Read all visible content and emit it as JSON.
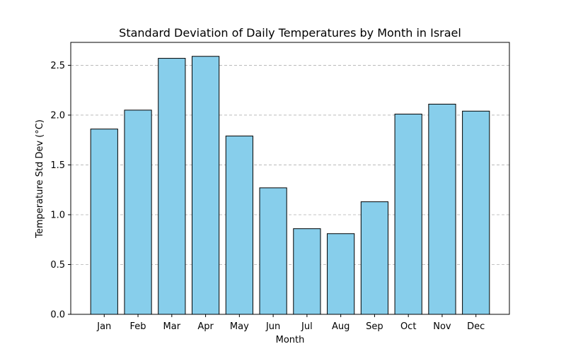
{
  "chart_data": {
    "type": "bar",
    "title": "Standard Deviation of Daily Temperatures by Month in Israel",
    "xlabel": "Month",
    "ylabel": "Temperature Std Dev (°C)",
    "categories": [
      "Jan",
      "Feb",
      "Mar",
      "Apr",
      "May",
      "Jun",
      "Jul",
      "Aug",
      "Sep",
      "Oct",
      "Nov",
      "Dec"
    ],
    "values": [
      1.86,
      2.05,
      2.57,
      2.59,
      1.79,
      1.27,
      0.86,
      0.81,
      1.13,
      2.01,
      2.11,
      2.04
    ],
    "ylim": [
      0,
      2.73
    ],
    "yticks": [
      0.0,
      0.5,
      1.0,
      1.5,
      2.0,
      2.5
    ],
    "ytick_labels": [
      "0.0",
      "0.5",
      "1.0",
      "1.5",
      "2.0",
      "2.5"
    ],
    "bar_color": "#87ceeb",
    "edge_color": "#000000",
    "grid": "y-dashed",
    "legend": "none"
  }
}
